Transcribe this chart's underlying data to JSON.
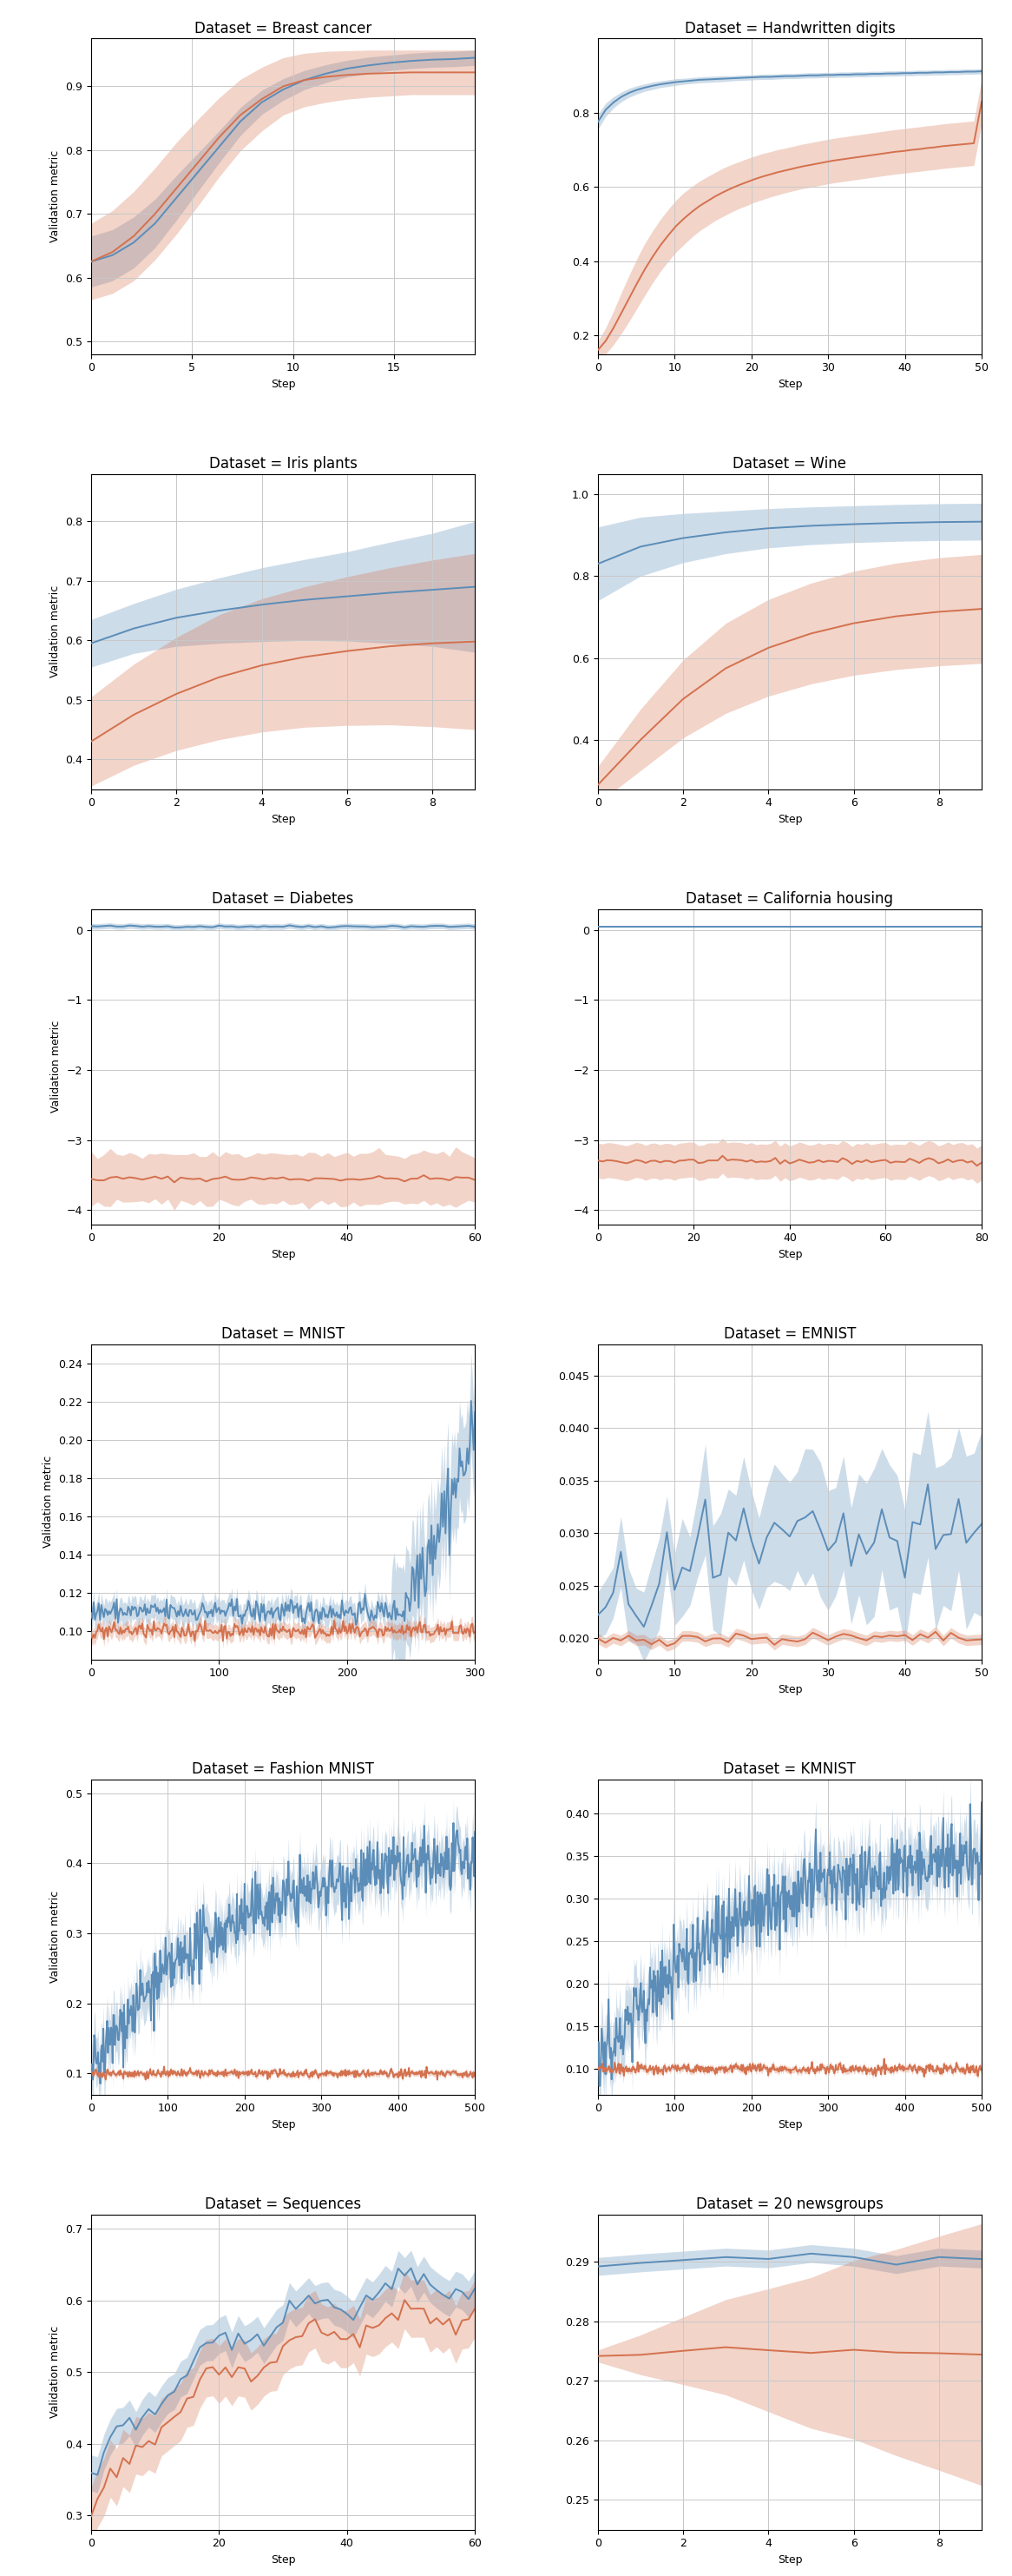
{
  "plots": [
    {
      "title": "Dataset = Breast cancer",
      "xmax": 19,
      "xticks": [
        0,
        5,
        10,
        15
      ],
      "ylim": [
        0.48,
        0.975
      ],
      "yticks": [
        0.5,
        0.6,
        0.7,
        0.8,
        0.9
      ],
      "blue_mean": [
        0.625,
        0.635,
        0.655,
        0.685,
        0.725,
        0.765,
        0.805,
        0.845,
        0.875,
        0.895,
        0.91,
        0.92,
        0.928,
        0.933,
        0.937,
        0.94,
        0.942,
        0.943,
        0.945
      ],
      "blue_std": [
        0.04,
        0.04,
        0.04,
        0.038,
        0.035,
        0.03,
        0.025,
        0.022,
        0.019,
        0.017,
        0.015,
        0.014,
        0.013,
        0.013,
        0.012,
        0.012,
        0.012,
        0.012,
        0.012
      ],
      "orange_mean": [
        0.625,
        0.64,
        0.665,
        0.7,
        0.74,
        0.78,
        0.82,
        0.855,
        0.88,
        0.9,
        0.91,
        0.915,
        0.918,
        0.92,
        0.921,
        0.922,
        0.922,
        0.922,
        0.922
      ],
      "orange_std": [
        0.06,
        0.065,
        0.07,
        0.072,
        0.072,
        0.068,
        0.062,
        0.056,
        0.05,
        0.045,
        0.042,
        0.04,
        0.038,
        0.037,
        0.036,
        0.035,
        0.035,
        0.035,
        0.035
      ]
    },
    {
      "title": "Dataset = Handwritten digits",
      "xmax": 50,
      "xticks": [
        0,
        10,
        20,
        30,
        40,
        50
      ],
      "ylim": [
        0.15,
        1.0
      ],
      "yticks": [
        0.2,
        0.4,
        0.6,
        0.8
      ],
      "blue_mean": [
        0.775,
        0.808,
        0.828,
        0.843,
        0.854,
        0.862,
        0.868,
        0.873,
        0.877,
        0.88,
        0.883,
        0.885,
        0.887,
        0.889,
        0.89,
        0.891,
        0.892,
        0.893,
        0.894,
        0.895,
        0.896,
        0.897,
        0.897,
        0.898,
        0.899,
        0.899,
        0.9,
        0.901,
        0.901,
        0.902,
        0.902,
        0.903,
        0.903,
        0.904,
        0.904,
        0.905,
        0.905,
        0.906,
        0.906,
        0.907,
        0.907,
        0.908,
        0.908,
        0.909,
        0.909,
        0.91,
        0.91,
        0.911,
        0.911,
        0.912
      ],
      "blue_std": [
        0.02,
        0.018,
        0.015,
        0.013,
        0.012,
        0.011,
        0.01,
        0.01,
        0.009,
        0.009,
        0.009,
        0.008,
        0.008,
        0.008,
        0.008,
        0.008,
        0.008,
        0.007,
        0.007,
        0.007,
        0.007,
        0.007,
        0.007,
        0.007,
        0.007,
        0.007,
        0.007,
        0.007,
        0.007,
        0.007,
        0.007,
        0.007,
        0.007,
        0.007,
        0.007,
        0.007,
        0.007,
        0.007,
        0.007,
        0.007,
        0.007,
        0.007,
        0.007,
        0.007,
        0.007,
        0.007,
        0.007,
        0.007,
        0.007,
        0.007
      ],
      "orange_mean": [
        0.16,
        0.185,
        0.22,
        0.26,
        0.3,
        0.34,
        0.378,
        0.412,
        0.443,
        0.47,
        0.495,
        0.515,
        0.533,
        0.549,
        0.562,
        0.575,
        0.586,
        0.596,
        0.605,
        0.613,
        0.621,
        0.628,
        0.634,
        0.64,
        0.645,
        0.65,
        0.655,
        0.659,
        0.663,
        0.667,
        0.671,
        0.674,
        0.677,
        0.68,
        0.683,
        0.686,
        0.689,
        0.692,
        0.695,
        0.697,
        0.7,
        0.702,
        0.705,
        0.707,
        0.71,
        0.712,
        0.714,
        0.716,
        0.718,
        0.83
      ],
      "orange_std": [
        0.025,
        0.035,
        0.045,
        0.055,
        0.062,
        0.067,
        0.07,
        0.07,
        0.07,
        0.07,
        0.07,
        0.07,
        0.068,
        0.067,
        0.066,
        0.065,
        0.065,
        0.064,
        0.063,
        0.063,
        0.062,
        0.062,
        0.061,
        0.061,
        0.06,
        0.06,
        0.06,
        0.06,
        0.06,
        0.06,
        0.06,
        0.06,
        0.06,
        0.06,
        0.06,
        0.06,
        0.06,
        0.06,
        0.06,
        0.06,
        0.06,
        0.06,
        0.06,
        0.06,
        0.06,
        0.06,
        0.06,
        0.06,
        0.06,
        0.06
      ]
    },
    {
      "title": "Dataset = Iris plants",
      "xmax": 9,
      "xticks": [
        0,
        2,
        4,
        6,
        8
      ],
      "ylim": [
        0.35,
        0.88
      ],
      "yticks": [
        0.4,
        0.5,
        0.6,
        0.7,
        0.8
      ],
      "blue_mean": [
        0.595,
        0.62,
        0.638,
        0.65,
        0.66,
        0.668,
        0.674,
        0.68,
        0.685,
        0.69
      ],
      "blue_std": [
        0.04,
        0.042,
        0.048,
        0.055,
        0.062,
        0.068,
        0.075,
        0.085,
        0.095,
        0.11
      ],
      "orange_mean": [
        0.43,
        0.475,
        0.51,
        0.538,
        0.558,
        0.572,
        0.582,
        0.59,
        0.595,
        0.598
      ],
      "orange_std": [
        0.075,
        0.085,
        0.095,
        0.105,
        0.112,
        0.118,
        0.125,
        0.132,
        0.14,
        0.148
      ]
    },
    {
      "title": "Dataset = Wine",
      "xmax": 9,
      "xticks": [
        0,
        2,
        4,
        6,
        8
      ],
      "ylim": [
        0.28,
        1.05
      ],
      "yticks": [
        0.4,
        0.6,
        0.8,
        1.0
      ],
      "blue_mean": [
        0.83,
        0.872,
        0.893,
        0.907,
        0.917,
        0.923,
        0.927,
        0.93,
        0.932,
        0.933
      ],
      "blue_std": [
        0.09,
        0.072,
        0.06,
        0.052,
        0.048,
        0.046,
        0.045,
        0.045,
        0.045,
        0.045
      ],
      "orange_mean": [
        0.29,
        0.4,
        0.5,
        0.575,
        0.625,
        0.66,
        0.685,
        0.702,
        0.713,
        0.72
      ],
      "orange_std": [
        0.045,
        0.075,
        0.095,
        0.11,
        0.118,
        0.123,
        0.127,
        0.13,
        0.132,
        0.133
      ]
    },
    {
      "title": "Dataset = Diabetes",
      "xmax": 60,
      "xticks": [
        0,
        20,
        40,
        60
      ],
      "ylim": [
        -4.2,
        0.3
      ],
      "yticks": [
        0,
        -1,
        -2,
        -3,
        -4
      ],
      "blue_mean_const": 0.05,
      "blue_std_const": 0.04,
      "orange_mean_const": -3.55,
      "orange_std_const": 0.35,
      "n_steps": 61
    },
    {
      "title": "Dataset = California housing",
      "xmax": 80,
      "xticks": [
        0,
        20,
        40,
        60,
        80
      ],
      "ylim": [
        -4.2,
        0.3
      ],
      "yticks": [
        0,
        -1,
        -2,
        -3,
        -4
      ],
      "blue_mean_const": 0.05,
      "blue_std_const": 0.0,
      "orange_mean_const": -3.3,
      "orange_std_const": 0.25,
      "n_steps": 81
    },
    {
      "title": "Dataset = MNIST",
      "xmax": 300,
      "xticks": [
        0,
        100,
        200,
        300
      ],
      "ylim": [
        0.085,
        0.25
      ],
      "yticks": [
        0.1,
        0.12,
        0.14,
        0.16,
        0.18,
        0.2,
        0.22,
        0.24
      ],
      "n_steps": 301,
      "blue_pre_jump": 0.11,
      "blue_post_start": 0.115,
      "blue_post_end": 0.2,
      "blue_pre_std": 0.006,
      "blue_post_std": 0.025,
      "orange_level": 0.1,
      "orange_std": 0.004,
      "jump_step": 245
    },
    {
      "title": "Dataset = EMNIST",
      "xmax": 50,
      "xticks": [
        0,
        10,
        20,
        30,
        40,
        50
      ],
      "ylim": [
        0.018,
        0.048
      ],
      "yticks": [
        0.02,
        0.025,
        0.03,
        0.035,
        0.04,
        0.045
      ],
      "n_steps": 51,
      "blue_start": 0.0215,
      "blue_end": 0.0295,
      "blue_std_start": 0.002,
      "blue_std_end": 0.007,
      "orange_level": 0.02,
      "orange_std": 0.0005
    },
    {
      "title": "Dataset = Fashion MNIST",
      "xmax": 500,
      "xticks": [
        0,
        100,
        200,
        300,
        400,
        500
      ],
      "ylim": [
        0.07,
        0.52
      ],
      "yticks": [
        0.1,
        0.2,
        0.3,
        0.4,
        0.5
      ],
      "n_steps": 501,
      "blue_start": 0.1,
      "blue_end": 0.42,
      "blue_std": 0.035,
      "orange_level": 0.1,
      "orange_std": 0.004
    },
    {
      "title": "Dataset = KMNIST",
      "xmax": 500,
      "xticks": [
        0,
        100,
        200,
        300,
        400,
        500
      ],
      "ylim": [
        0.07,
        0.44
      ],
      "yticks": [
        0.1,
        0.15,
        0.2,
        0.25,
        0.3,
        0.35,
        0.4
      ],
      "n_steps": 501,
      "blue_start": 0.1,
      "blue_end": 0.36,
      "blue_std": 0.035,
      "orange_level": 0.1,
      "orange_std": 0.004
    },
    {
      "title": "Dataset = Sequences",
      "xmax": 60,
      "xticks": [
        0,
        20,
        40,
        60
      ],
      "ylim": [
        0.28,
        0.72
      ],
      "yticks": [
        0.3,
        0.4,
        0.5,
        0.6,
        0.7
      ],
      "n_steps": 61,
      "blue_start": 0.35,
      "blue_end": 0.64,
      "blue_std": 0.025,
      "orange_start": 0.3,
      "orange_end": 0.6,
      "orange_std": 0.04
    },
    {
      "title": "Dataset = 20 newsgroups",
      "xmax": 9,
      "xticks": [
        0,
        2,
        4,
        6,
        8
      ],
      "ylim": [
        0.245,
        0.298
      ],
      "yticks": [
        0.25,
        0.26,
        0.27,
        0.28,
        0.29
      ],
      "n_steps": 10,
      "blue_start": 0.289,
      "blue_end": 0.291,
      "blue_std": 0.0015,
      "orange_level": 0.275,
      "orange_std_start": 0.001,
      "orange_std_end": 0.022
    }
  ],
  "blue_color": "#5B8DB8",
  "orange_color": "#D4714E",
  "blue_fill_alpha": 0.3,
  "orange_fill_alpha": 0.3,
  "ylabel": "Validation metric",
  "xlabel": "Step",
  "title_fontsize": 12,
  "label_fontsize": 9,
  "tick_fontsize": 9
}
